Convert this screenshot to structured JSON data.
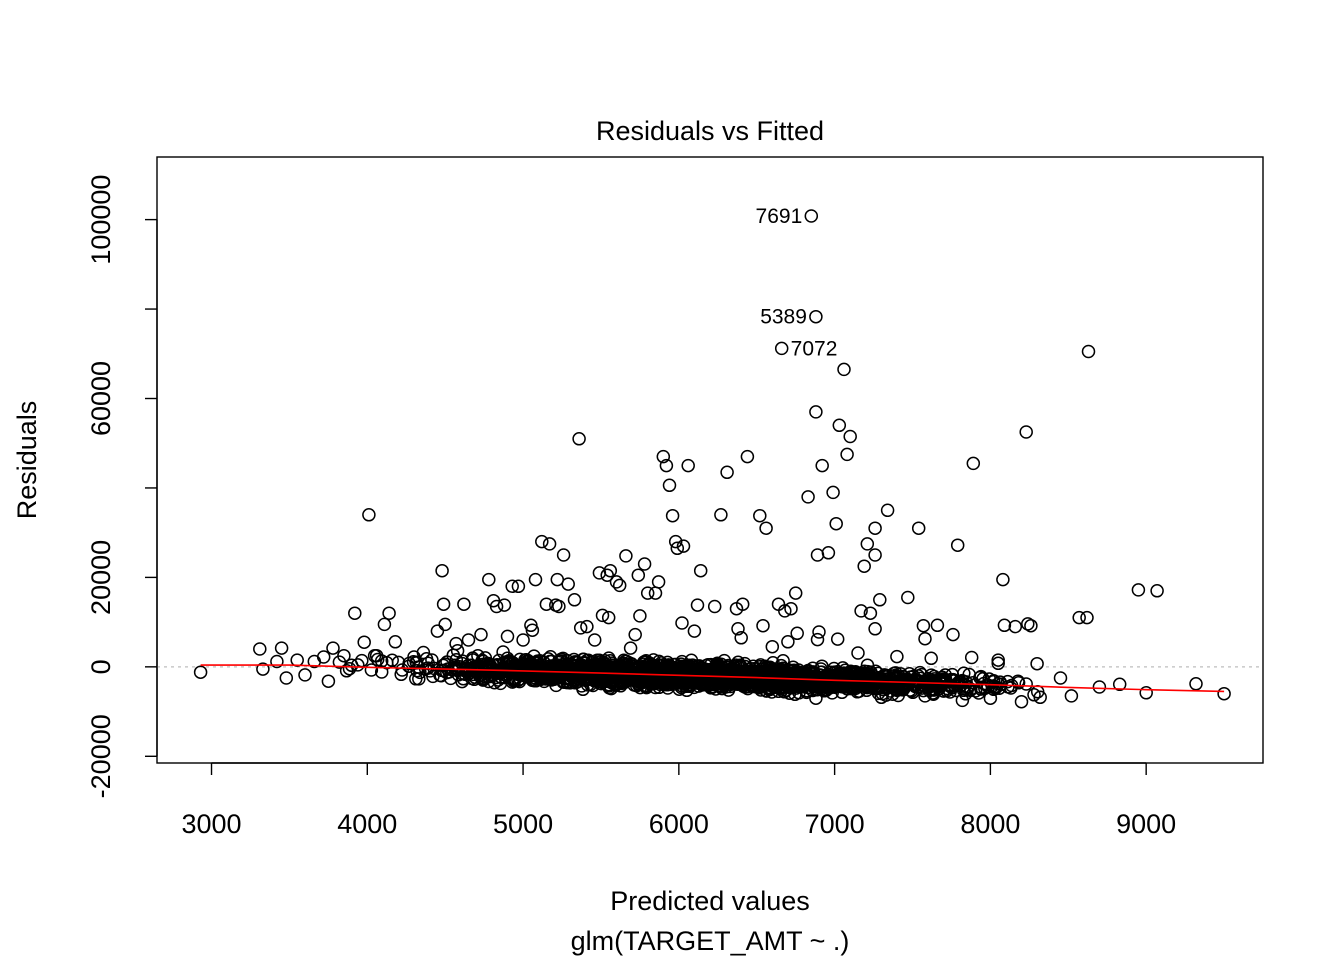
{
  "chart_data": {
    "type": "scatter",
    "title": "Residuals vs Fitted",
    "xlabel": "Predicted values",
    "subtitle": "glm(TARGET_AMT ~ .)",
    "ylabel": "Residuals",
    "xlim": [
      2650,
      9750
    ],
    "ylim": [
      -21500,
      114000
    ],
    "x_ticks": [
      {
        "value": 3000,
        "label": "3000"
      },
      {
        "value": 4000,
        "label": "4000"
      },
      {
        "value": 5000,
        "label": "5000"
      },
      {
        "value": 6000,
        "label": "6000"
      },
      {
        "value": 7000,
        "label": "7000"
      },
      {
        "value": 8000,
        "label": "8000"
      },
      {
        "value": 9000,
        "label": "9000"
      }
    ],
    "y_ticks": [
      {
        "value": -20000,
        "label": "-20000",
        "show_label": true
      },
      {
        "value": 0,
        "label": "0",
        "show_label": true
      },
      {
        "value": 20000,
        "label": "20000",
        "show_label": true
      },
      {
        "value": 40000,
        "label": "40000",
        "show_label": false
      },
      {
        "value": 60000,
        "label": "60000",
        "show_label": true
      },
      {
        "value": 80000,
        "label": "80000",
        "show_label": false
      },
      {
        "value": 100000,
        "label": "100000",
        "show_label": true
      }
    ],
    "zero_line": 0,
    "colors": {
      "points": "#000000",
      "smooth": "#ff0000",
      "zero_line": "#bebebe",
      "frame": "#000000"
    },
    "labeled_points": [
      {
        "x": 6850,
        "y": 100800,
        "label": "7691",
        "label_side": "left"
      },
      {
        "x": 6880,
        "y": 78300,
        "label": "5389",
        "label_side": "left"
      },
      {
        "x": 6660,
        "y": 71200,
        "label": "7072",
        "label_side": "right"
      }
    ],
    "points": [
      [
        2930,
        -1200
      ],
      [
        3310,
        4000
      ],
      [
        3330,
        -500
      ],
      [
        3420,
        1200
      ],
      [
        3450,
        4200
      ],
      [
        3480,
        -2500
      ],
      [
        3550,
        1500
      ],
      [
        3600,
        -1800
      ],
      [
        3660,
        1200
      ],
      [
        3720,
        2200
      ],
      [
        3750,
        -3200
      ],
      [
        3780,
        4200
      ],
      [
        3850,
        2500
      ],
      [
        3920,
        12000
      ],
      [
        3980,
        5500
      ],
      [
        4010,
        34000
      ],
      [
        4060,
        2500
      ],
      [
        4110,
        9500
      ],
      [
        4140,
        12000
      ],
      [
        4200,
        1000
      ],
      [
        4300,
        2200
      ],
      [
        4380,
        1800
      ],
      [
        4450,
        8000
      ],
      [
        4480,
        21500
      ],
      [
        4490,
        14000
      ],
      [
        4500,
        9500
      ],
      [
        4580,
        3600
      ],
      [
        4620,
        14000
      ],
      [
        4650,
        6000
      ],
      [
        4710,
        2500
      ],
      [
        4780,
        19500
      ],
      [
        4810,
        14800
      ],
      [
        4830,
        13500
      ],
      [
        4880,
        13800
      ],
      [
        4930,
        18000
      ],
      [
        4970,
        18000
      ],
      [
        5000,
        6000
      ],
      [
        5050,
        9300
      ],
      [
        5060,
        8200
      ],
      [
        5080,
        19500
      ],
      [
        5120,
        28000
      ],
      [
        5150,
        14000
      ],
      [
        5170,
        27500
      ],
      [
        5220,
        19500
      ],
      [
        5230,
        13500
      ],
      [
        5260,
        25000
      ],
      [
        5290,
        18500
      ],
      [
        5330,
        15000
      ],
      [
        5360,
        51000
      ],
      [
        5410,
        9000
      ],
      [
        5460,
        6000
      ],
      [
        5490,
        21000
      ],
      [
        5510,
        11500
      ],
      [
        5540,
        20500
      ],
      [
        5560,
        21500
      ],
      [
        5600,
        19000
      ],
      [
        5620,
        18200
      ],
      [
        5660,
        24800
      ],
      [
        5690,
        4200
      ],
      [
        5720,
        7200
      ],
      [
        5740,
        20500
      ],
      [
        5780,
        23000
      ],
      [
        5800,
        16500
      ],
      [
        5850,
        16500
      ],
      [
        5870,
        19000
      ],
      [
        5900,
        47000
      ],
      [
        5920,
        45000
      ],
      [
        5940,
        40600
      ],
      [
        5960,
        33800
      ],
      [
        5980,
        28000
      ],
      [
        5990,
        26500
      ],
      [
        6030,
        27000
      ],
      [
        6060,
        45000
      ],
      [
        6100,
        8000
      ],
      [
        6120,
        13800
      ],
      [
        6140,
        21500
      ],
      [
        6230,
        13500
      ],
      [
        6270,
        34000
      ],
      [
        6310,
        43500
      ],
      [
        6370,
        13000
      ],
      [
        6380,
        8500
      ],
      [
        6410,
        14000
      ],
      [
        6440,
        47000
      ],
      [
        6520,
        33800
      ],
      [
        6560,
        31000
      ],
      [
        6600,
        4500
      ],
      [
        6640,
        14000
      ],
      [
        6680,
        12500
      ],
      [
        6720,
        13000
      ],
      [
        6750,
        16500
      ],
      [
        6760,
        7500
      ],
      [
        6830,
        38000
      ],
      [
        6880,
        57000
      ],
      [
        6890,
        25000
      ],
      [
        6900,
        7800
      ],
      [
        6920,
        45000
      ],
      [
        6960,
        25500
      ],
      [
        6990,
        39000
      ],
      [
        7010,
        32000
      ],
      [
        7030,
        54000
      ],
      [
        7060,
        66500
      ],
      [
        7080,
        47500
      ],
      [
        7100,
        51500
      ],
      [
        7170,
        12500
      ],
      [
        7190,
        22500
      ],
      [
        7210,
        27500
      ],
      [
        7230,
        12000
      ],
      [
        7260,
        25000
      ],
      [
        7260,
        31000
      ],
      [
        7290,
        15000
      ],
      [
        7340,
        35000
      ],
      [
        7470,
        15500
      ],
      [
        7540,
        31000
      ],
      [
        7570,
        9200
      ],
      [
        7580,
        6300
      ],
      [
        7660,
        9300
      ],
      [
        7760,
        7200
      ],
      [
        7790,
        27200
      ],
      [
        7890,
        45500
      ],
      [
        8050,
        1500
      ],
      [
        8080,
        19500
      ],
      [
        8090,
        9300
      ],
      [
        8160,
        9000
      ],
      [
        8230,
        52500
      ],
      [
        8240,
        9600
      ],
      [
        8260,
        9200
      ],
      [
        8570,
        11000
      ],
      [
        8620,
        11000
      ],
      [
        8630,
        70500
      ],
      [
        8950,
        17200
      ],
      [
        9070,
        17000
      ],
      [
        9320,
        -3800
      ],
      [
        9500,
        -6000
      ],
      [
        7260,
        8500
      ],
      [
        7020,
        6200
      ],
      [
        6540,
        9200
      ],
      [
        6400,
        6500
      ],
      [
        6020,
        9800
      ],
      [
        5750,
        11400
      ],
      [
        5550,
        11000
      ],
      [
        5370,
        8700
      ],
      [
        5210,
        13800
      ],
      [
        4900,
        6800
      ],
      [
        4730,
        7200
      ],
      [
        4570,
        5200
      ],
      [
        4180,
        5600
      ],
      [
        4360,
        3200
      ],
      [
        6700,
        5600
      ],
      [
        6890,
        6100
      ],
      [
        7150,
        3100
      ],
      [
        7400,
        2300
      ],
      [
        7620,
        1900
      ],
      [
        7880,
        2100
      ],
      [
        8050,
        800
      ],
      [
        8300,
        700
      ],
      [
        8450,
        -2500
      ],
      [
        8520,
        -6500
      ],
      [
        8700,
        -4500
      ],
      [
        8830,
        -3900
      ],
      [
        9000,
        -5800
      ],
      [
        8200,
        -7800
      ],
      [
        8320,
        -6800
      ],
      [
        8000,
        -7000
      ],
      [
        7820,
        -7500
      ],
      [
        7580,
        -6500
      ],
      [
        7300,
        -6800
      ],
      [
        6880,
        -7000
      ]
    ],
    "cloud": {
      "x_range": [
        3700,
        8600
      ],
      "y_center_at": [
        [
          3700,
          400
        ],
        [
          5000,
          -700
        ],
        [
          6000,
          -1800
        ],
        [
          7000,
          -2900
        ],
        [
          8000,
          -4000
        ],
        [
          8600,
          -4800
        ]
      ],
      "spread": [
        [
          3700,
          2200
        ],
        [
          5000,
          2600
        ],
        [
          6000,
          2600
        ],
        [
          7000,
          2500
        ],
        [
          8000,
          2000
        ],
        [
          8600,
          1700
        ]
      ],
      "count": 2300
    },
    "smooth_line": [
      [
        2930,
        400
      ],
      [
        3500,
        400
      ],
      [
        4000,
        -100
      ],
      [
        4500,
        -500
      ],
      [
        5000,
        -900
      ],
      [
        5500,
        -1400
      ],
      [
        6000,
        -1900
      ],
      [
        6500,
        -2400
      ],
      [
        7000,
        -3000
      ],
      [
        7500,
        -3500
      ],
      [
        8000,
        -4000
      ],
      [
        8500,
        -4600
      ],
      [
        9000,
        -5100
      ],
      [
        9500,
        -5500
      ]
    ]
  }
}
